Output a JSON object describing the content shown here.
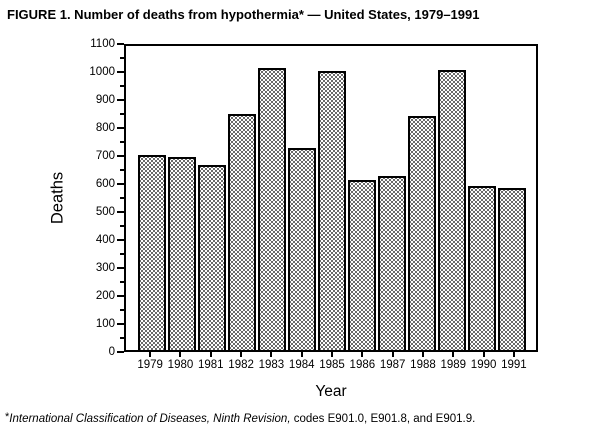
{
  "title": "FIGURE 1. Number of deaths from hypothermia* — United States, 1979–1991",
  "chart_data": {
    "type": "bar",
    "title": "FIGURE 1. Number of deaths from hypothermia* — United States, 1979–1991",
    "categories": [
      "1979",
      "1980",
      "1981",
      "1982",
      "1983",
      "1984",
      "1985",
      "1986",
      "1987",
      "1988",
      "1989",
      "1990",
      "1991"
    ],
    "values": [
      705,
      700,
      670,
      855,
      1020,
      730,
      1010,
      615,
      630,
      845,
      1015,
      595,
      585
    ],
    "xlabel": "Year",
    "ylabel": "Deaths",
    "ylim": [
      0,
      1100
    ],
    "yticks": [
      0,
      100,
      200,
      300,
      400,
      500,
      600,
      700,
      800,
      900,
      1000,
      1100
    ],
    "ytick_step": 100,
    "ytick_minor_step": 50,
    "grid": "off",
    "legend": "none",
    "bar_fill": "dotted-stipple",
    "bar_border_color": "#000000",
    "axis_color": "#000000"
  },
  "footnote": {
    "marker": "*",
    "italic_text": "International Classification of Diseases, Ninth Revision,",
    "regular_text": "  codes E901.0, E901.8, and E901.9."
  }
}
